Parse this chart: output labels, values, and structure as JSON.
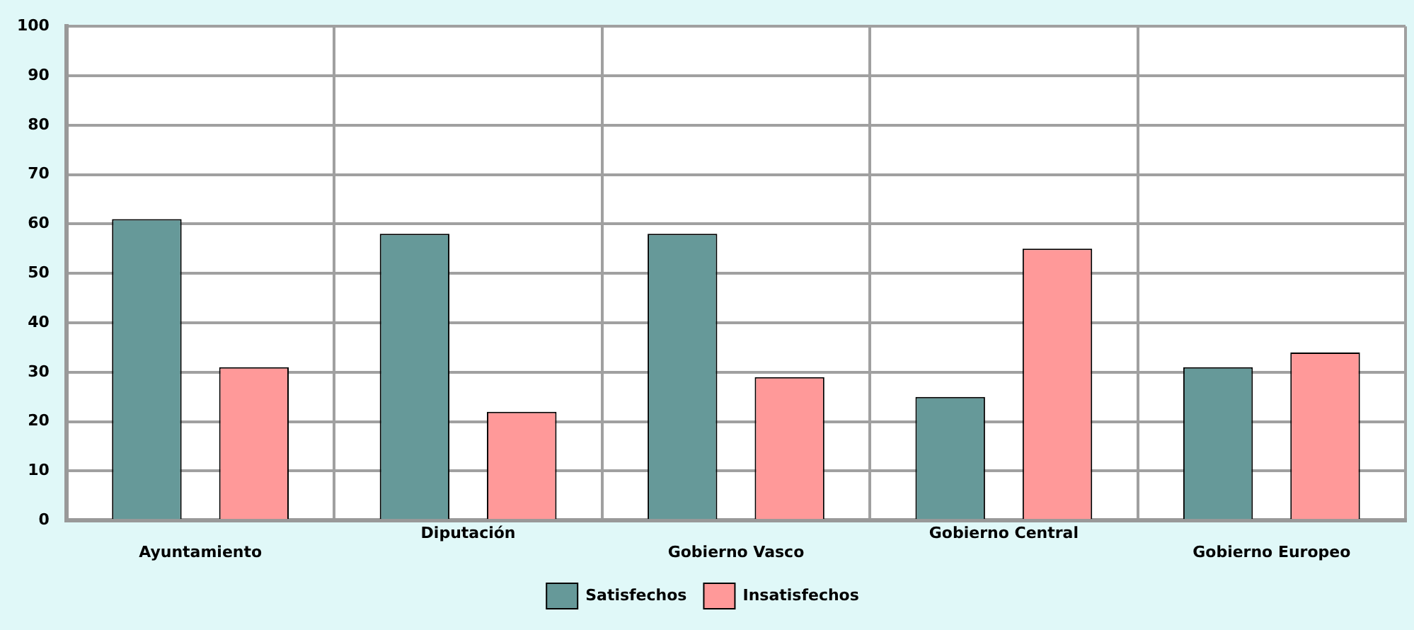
{
  "chart_data": {
    "type": "bar",
    "categories": [
      "Ayuntamiento",
      "Diputación",
      "Gobierno Vasco",
      "Gobierno Central",
      "Gobierno Europeo"
    ],
    "series": [
      {
        "name": "Satisfechos",
        "color": "#669999",
        "values": [
          61,
          58,
          58,
          25,
          31
        ]
      },
      {
        "name": "Insatisfechos",
        "color": "#ff9999",
        "values": [
          31,
          22,
          29,
          55,
          34
        ]
      }
    ],
    "ylim": [
      0,
      100
    ],
    "yticks": [
      0,
      10,
      20,
      30,
      40,
      50,
      60,
      70,
      80,
      90,
      100
    ],
    "grid": true,
    "legend": "bottom"
  }
}
